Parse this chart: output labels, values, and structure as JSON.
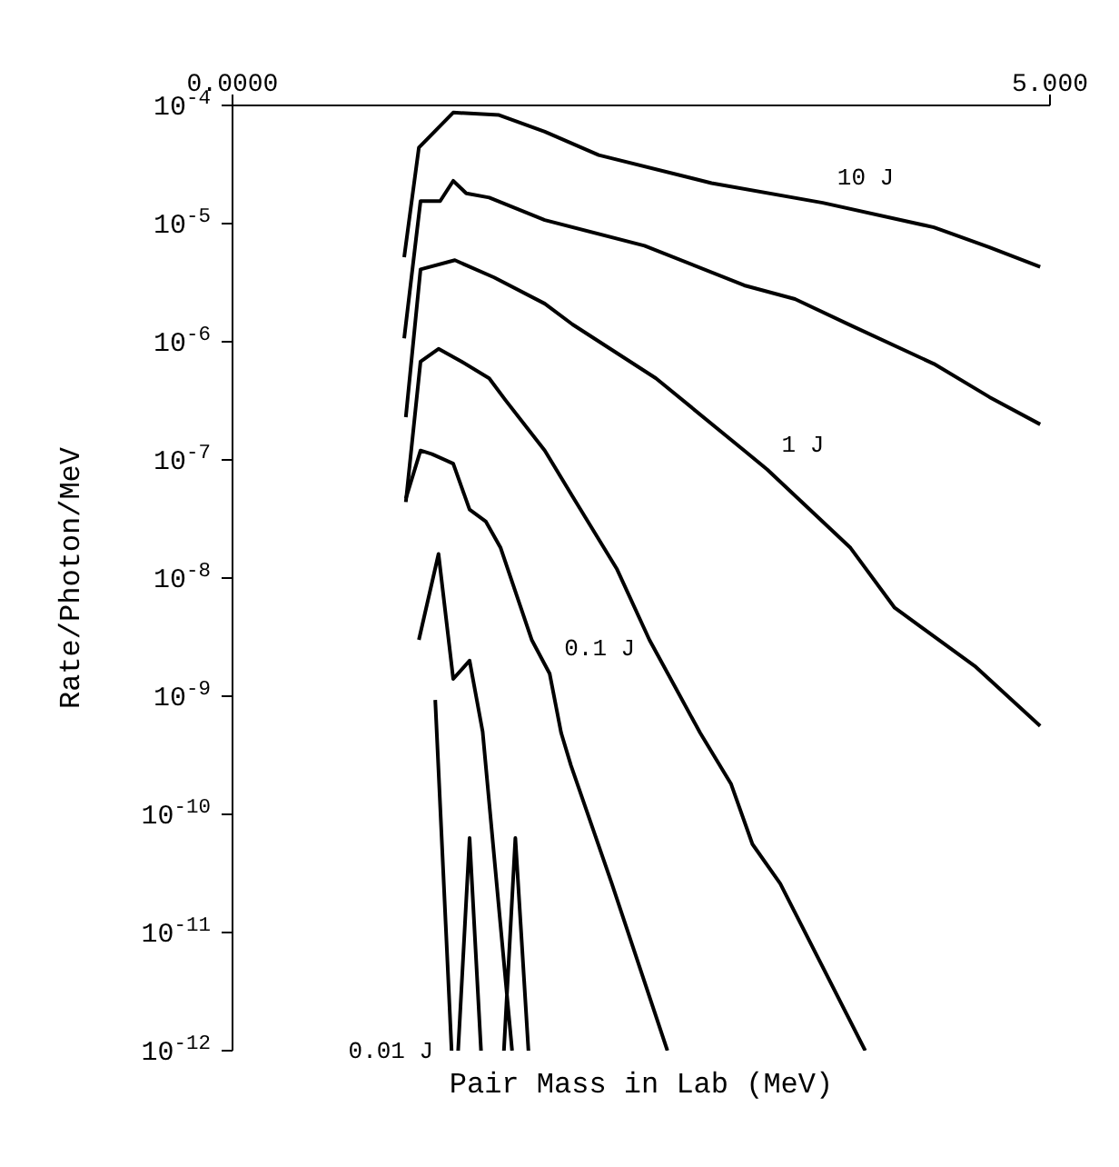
{
  "chart_data": {
    "type": "line",
    "xlabel": "Pair Mass in Lab (MeV)",
    "ylabel": "Rate/Photon/MeV",
    "xlim": [
      0,
      5
    ],
    "xticks": [
      {
        "value": 0,
        "label": "0.0000"
      },
      {
        "value": 5,
        "label": "5.000"
      }
    ],
    "ylim": [
      1e-12,
      0.0001
    ],
    "log": "y",
    "yticks": [
      {
        "value": 1e-12,
        "label": "10$^{-12}$"
      },
      {
        "value": 1e-11,
        "label": "10$^{-11}$"
      },
      {
        "value": 1e-10,
        "label": "10$^{-10}$"
      },
      {
        "value": 1e-09,
        "label": "10$^{-9}$"
      },
      {
        "value": 1e-08,
        "label": "10$^{-8}$"
      },
      {
        "value": 1e-07,
        "label": "10$^{-7}$"
      },
      {
        "value": 1e-06,
        "label": "10$^{-6}$"
      },
      {
        "value": 1e-05,
        "label": "10$^{-5}$"
      },
      {
        "value": 0.0001,
        "label": "10$^{-4}$"
      }
    ],
    "marker": "none",
    "line_style": "solid",
    "series": [
      {
        "name": "10 J",
        "color": "#000000",
        "x": [
          1.05,
          1.14,
          1.35,
          1.63,
          1.91,
          2.24,
          2.93,
          3.61,
          4.29,
          4.63,
          4.94
        ],
        "values": [
          5.2e-06,
          4.4e-05,
          8.7e-05,
          8.3e-05,
          6e-05,
          3.8e-05,
          2.2e-05,
          1.5e-05,
          9.3e-06,
          6.3e-06,
          4.3e-06
        ]
      },
      {
        "color": "#000000",
        "x": [
          1.05,
          1.15,
          1.27,
          1.35,
          1.43,
          1.57,
          1.91,
          2.52,
          3.13,
          3.44,
          3.78,
          4.29,
          4.63,
          4.94
        ],
        "values": [
          1.07e-06,
          1.55e-05,
          1.55e-05,
          2.3e-05,
          1.8e-05,
          1.66e-05,
          1.07e-05,
          6.5e-06,
          3e-06,
          2.3e-06,
          1.38e-06,
          6.5e-07,
          3.4e-07,
          2e-07
        ]
      },
      {
        "name": "1 J",
        "color": "#000000",
        "x": [
          1.06,
          1.15,
          1.36,
          1.6,
          1.91,
          2.08,
          2.59,
          3.13,
          3.27,
          3.78,
          4.05,
          4.54,
          4.94
        ],
        "values": [
          2.3e-07,
          4.1e-06,
          4.9e-06,
          3.5e-06,
          2.1e-06,
          1.4e-06,
          4.9e-07,
          1.2e-07,
          8.3e-08,
          1.8e-08,
          5.6e-09,
          1.8e-09,
          5.6e-10
        ]
      },
      {
        "color": "#000000",
        "x": [
          1.06,
          1.15,
          1.26,
          1.4,
          1.57,
          1.67,
          1.91,
          2.08,
          2.35,
          2.55,
          2.86,
          3.05,
          3.18,
          3.35,
          3.87
        ],
        "values": [
          4.4e-08,
          6.8e-07,
          8.7e-07,
          6.8e-07,
          4.9e-07,
          3.2e-07,
          1.2e-07,
          4.9e-08,
          1.2e-08,
          3e-09,
          4.9e-10,
          1.8e-10,
          5.6e-11,
          2.6e-11,
          1e-12
        ]
      },
      {
        "name": "0.1 J",
        "color": "#000000",
        "x": [
          1.06,
          1.15,
          1.22,
          1.35,
          1.45,
          1.55,
          1.64,
          1.83,
          1.94,
          2.01,
          2.07,
          2.32,
          2.66
        ],
        "values": [
          4.7e-08,
          1.2e-07,
          1.12e-07,
          9.3e-08,
          3.8e-08,
          3e-08,
          1.8e-08,
          3e-09,
          1.55e-09,
          4.9e-10,
          2.6e-10,
          2.6e-11,
          1e-12
        ]
      },
      {
        "name": "0.01 J",
        "color": "#000000",
        "x": [
          1.34,
          1.24,
          1.2,
          1.14,
          1.26,
          1.35,
          1.45,
          1.53,
          1.71,
          1.6,
          1.38,
          1.45,
          1.52,
          1.6,
          1.66,
          1.73,
          1.81
        ],
        "values": [
          1e-12,
          9.3e-10,
          null,
          3e-09,
          1.6e-08,
          1.4e-09,
          2e-09,
          5e-10,
          1e-12,
          null,
          1e-12,
          6.3e-11,
          1e-12,
          null,
          1e-12,
          6.3e-11,
          1e-12
        ]
      }
    ]
  }
}
